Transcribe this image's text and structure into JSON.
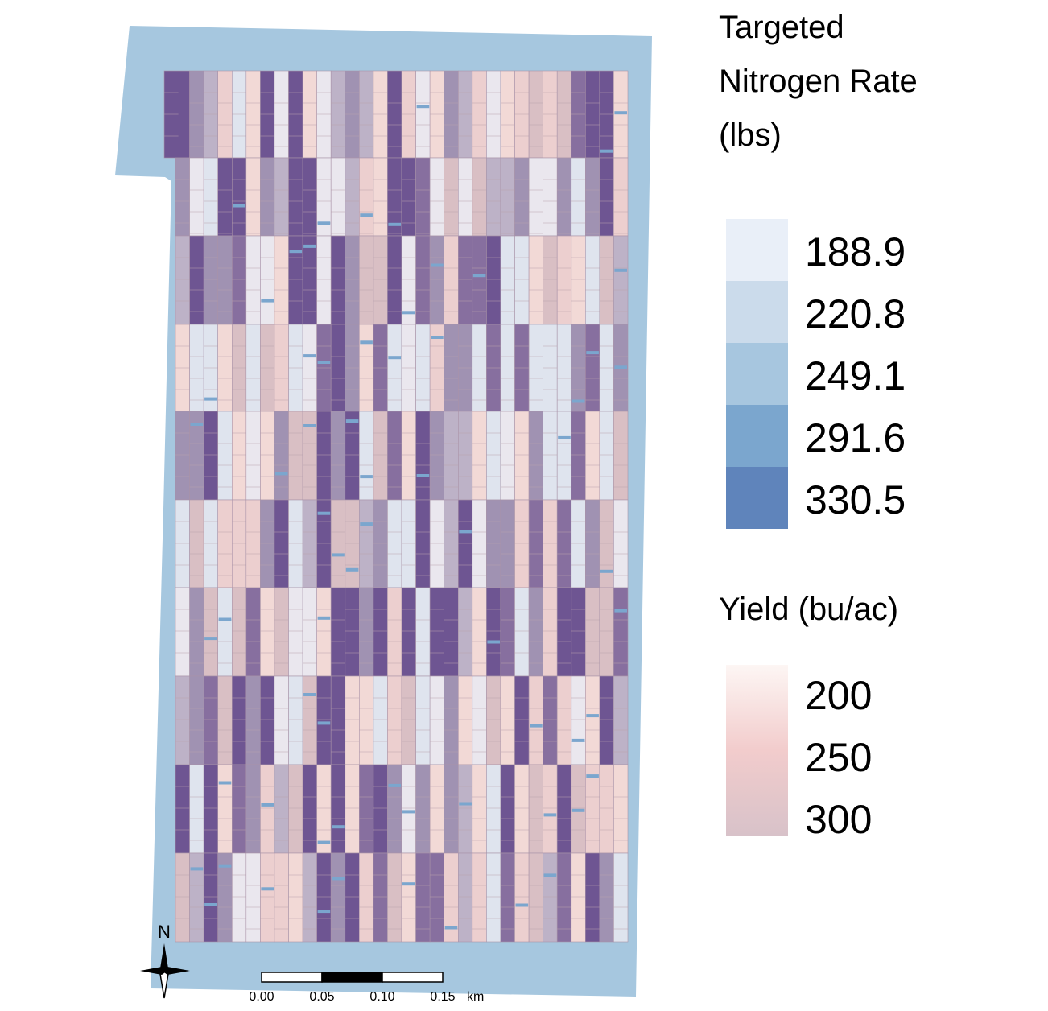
{
  "legend_nitrogen": {
    "title_lines": [
      "Targeted",
      "Nitrogen Rate",
      "(lbs)"
    ],
    "items": [
      {
        "label": "188.9",
        "color": "#e9eff8"
      },
      {
        "label": "220.8",
        "color": "#cbdbeb"
      },
      {
        "label": "249.1",
        "color": "#a7c6df"
      },
      {
        "label": "291.6",
        "color": "#7ba6ce"
      },
      {
        "label": "330.5",
        "color": "#5f84bb"
      }
    ]
  },
  "legend_yield": {
    "title": "Yield (bu/ac)",
    "labels": [
      "200",
      "250",
      "300"
    ],
    "gradient": [
      "#fdf6f4",
      "#f2cccc",
      "#d8c2c9"
    ]
  },
  "map": {
    "field_color": "#a6c7df",
    "trial_palette": [
      "#6e5592",
      "#876f9f",
      "#a092b2",
      "#bdb2c7",
      "#d9bfc4",
      "#eccfcf",
      "#f2d9d6",
      "#dfe4ee",
      "#eae7ee"
    ],
    "north_label": "N",
    "scale_ticks": [
      "0.00",
      "0.05",
      "0.10",
      "0.15"
    ],
    "scale_unit": "km"
  }
}
